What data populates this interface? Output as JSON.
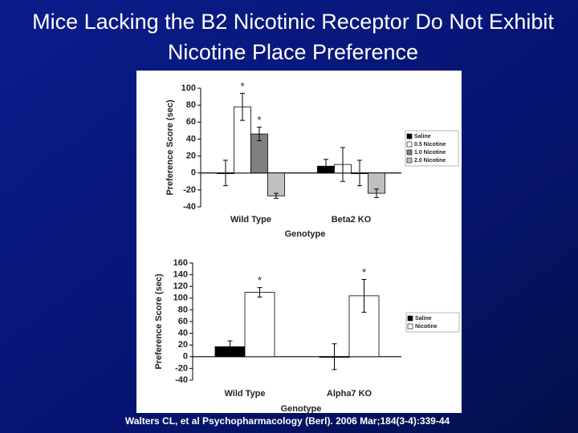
{
  "title": "Mice Lacking the B2 Nicotinic Receptor Do Not Exhibit Nicotine Place Preference",
  "citation": "Walters CL, et al Psychopharmacology (Berl). 2006 Mar;184(3-4):339-44",
  "chart_data": [
    {
      "type": "bar",
      "x_label": "Genotype",
      "y_label": "Preference Score (sec)",
      "categories": [
        "Wild Type",
        "Beta2 KO"
      ],
      "ylim": [
        -40,
        100
      ],
      "yticks": [
        -40,
        -20,
        0,
        20,
        40,
        60,
        80,
        100
      ],
      "series": [
        {
          "name": "Saline",
          "color": "#000000",
          "values": [
            0,
            8
          ],
          "errors": [
            15,
            8
          ],
          "markers": [
            null,
            null
          ]
        },
        {
          "name": "0.5 Nicotine",
          "color": "#ffffff",
          "values": [
            78,
            10
          ],
          "errors": [
            16,
            20
          ],
          "markers": [
            "*",
            null
          ]
        },
        {
          "name": "1.0 Nicotine",
          "color": "#808080",
          "values": [
            46,
            0
          ],
          "errors": [
            8,
            15
          ],
          "markers": [
            "*",
            null
          ]
        },
        {
          "name": "2.0 Nicotine",
          "color": "#c0c0c0",
          "values": [
            -27,
            -24
          ],
          "errors": [
            3,
            5
          ],
          "markers": [
            null,
            null
          ]
        }
      ]
    },
    {
      "type": "bar",
      "x_label": "Genotype",
      "y_label": "Preference Score (sec)",
      "categories": [
        "Wild Type",
        "Alpha7 KO"
      ],
      "ylim": [
        -40,
        160
      ],
      "yticks": [
        -40,
        -20,
        0,
        20,
        40,
        60,
        80,
        100,
        120,
        140,
        160
      ],
      "series": [
        {
          "name": "Saline",
          "color": "#000000",
          "values": [
            17,
            0
          ],
          "errors": [
            10,
            22
          ],
          "markers": [
            null,
            null
          ]
        },
        {
          "name": "Nicotine",
          "color": "#ffffff",
          "values": [
            110,
            104
          ],
          "errors": [
            8,
            28
          ],
          "markers": [
            "*",
            "*"
          ]
        }
      ]
    }
  ]
}
